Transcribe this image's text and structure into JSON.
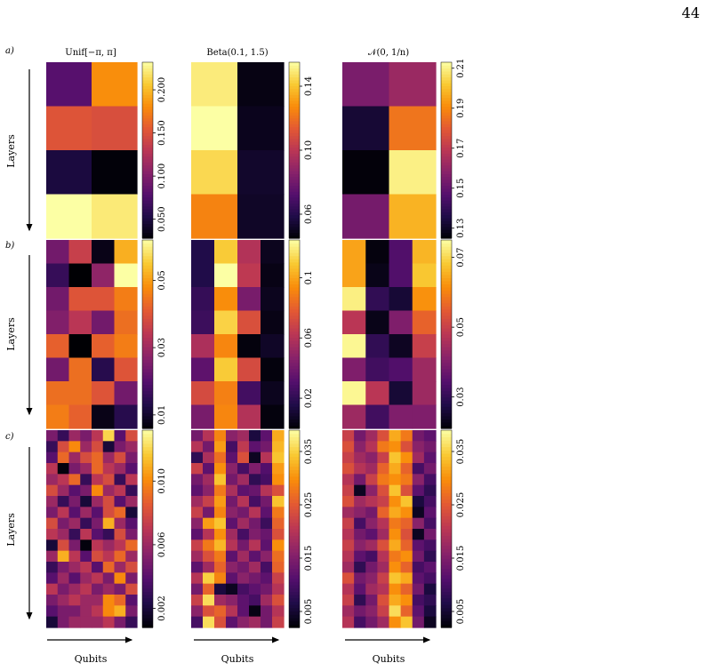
{
  "page_number": "44",
  "row_labels": [
    "a)",
    "b)",
    "c)"
  ],
  "column_titles": [
    "Unif[−π, π]",
    "Beta(0.1, 1.5)",
    "𝒩(0, 1/n)"
  ],
  "ylabel": "Layers",
  "xlabel": "Qubits",
  "colormap": "inferno",
  "chart_data": [
    {
      "type": "heatmap",
      "panel": "a",
      "title": "Unif[−π, π]",
      "xlabel": "",
      "ylabel": "Layers",
      "colorbar": {
        "range": [
          0.028,
          0.232
        ],
        "ticks": [
          "0.050",
          "0.100",
          "0.150",
          "0.200"
        ]
      },
      "values": [
        [
          0.08,
          0.182
        ],
        [
          0.152,
          0.148
        ],
        [
          0.05,
          0.03
        ],
        [
          0.232,
          0.222
        ]
      ]
    },
    {
      "type": "heatmap",
      "panel": "a",
      "title": "Beta(0.1, 1.5)",
      "xlabel": "",
      "ylabel": "",
      "colorbar": {
        "range": [
          0.045,
          0.155
        ],
        "ticks": [
          "0.06",
          "0.10",
          "0.14"
        ]
      },
      "values": [
        [
          0.15,
          0.048
        ],
        [
          0.155,
          0.05
        ],
        [
          0.145,
          0.053
        ],
        [
          0.125,
          0.052
        ]
      ]
    },
    {
      "type": "heatmap",
      "panel": "a",
      "title": "𝒩(0, 1/n)",
      "xlabel": "",
      "ylabel": "",
      "colorbar": {
        "range": [
          0.125,
          0.213
        ],
        "ticks": [
          "0.13",
          "0.15",
          "0.17",
          "0.19",
          "0.21"
        ]
      },
      "values": [
        [
          0.155,
          0.162
        ],
        [
          0.133,
          0.186
        ],
        [
          0.126,
          0.21
        ],
        [
          0.154,
          0.198
        ]
      ]
    },
    {
      "type": "heatmap",
      "panel": "b",
      "xlabel": "",
      "ylabel": "Layers",
      "colorbar": {
        "range": [
          0.006,
          0.062
        ],
        "ticks": [
          "0.01",
          "0.03",
          "0.05"
        ]
      },
      "values": [
        [
          0.024,
          0.036,
          0.008,
          0.052
        ],
        [
          0.016,
          0.006,
          0.028,
          0.062
        ],
        [
          0.024,
          0.04,
          0.04,
          0.046
        ],
        [
          0.026,
          0.034,
          0.024,
          0.044
        ],
        [
          0.042,
          0.006,
          0.042,
          0.046
        ],
        [
          0.024,
          0.044,
          0.014,
          0.04
        ],
        [
          0.044,
          0.044,
          0.04,
          0.024
        ],
        [
          0.046,
          0.042,
          0.008,
          0.014
        ]
      ]
    },
    {
      "type": "heatmap",
      "panel": "b",
      "xlabel": "",
      "ylabel": "",
      "colorbar": {
        "range": [
          0.0,
          0.125
        ],
        "ticks": [
          "0.02",
          "0.06",
          "0.1"
        ]
      },
      "values": [
        [
          0.016,
          0.11,
          0.06,
          0.006
        ],
        [
          0.016,
          0.125,
          0.064,
          0.004
        ],
        [
          0.022,
          0.094,
          0.042,
          0.006
        ],
        [
          0.024,
          0.112,
          0.074,
          0.004
        ],
        [
          0.058,
          0.092,
          0.002,
          0.008
        ],
        [
          0.034,
          0.11,
          0.072,
          0.002
        ],
        [
          0.072,
          0.09,
          0.026,
          0.006
        ],
        [
          0.042,
          0.092,
          0.06,
          0.002
        ]
      ]
    },
    {
      "type": "heatmap",
      "panel": "b",
      "xlabel": "",
      "ylabel": "",
      "colorbar": {
        "range": [
          0.021,
          0.075
        ],
        "ticks": [
          "0.03",
          "0.05",
          "0.07"
        ]
      },
      "values": [
        [
          0.064,
          0.022,
          0.034,
          0.066
        ],
        [
          0.064,
          0.023,
          0.034,
          0.068
        ],
        [
          0.073,
          0.03,
          0.026,
          0.062
        ],
        [
          0.048,
          0.023,
          0.04,
          0.056
        ],
        [
          0.074,
          0.03,
          0.024,
          0.05
        ],
        [
          0.04,
          0.032,
          0.034,
          0.044
        ],
        [
          0.074,
          0.048,
          0.026,
          0.044
        ],
        [
          0.044,
          0.032,
          0.04,
          0.04
        ]
      ]
    },
    {
      "type": "heatmap",
      "panel": "c",
      "xlabel": "Qubits",
      "ylabel": "Layers",
      "colorbar": {
        "range": [
          0.0008,
          0.0132
        ],
        "ticks": [
          "0.002",
          "0.006",
          "0.010"
        ]
      },
      "values": [
        [
          0.005,
          0.003,
          0.006,
          0.005,
          0.007,
          0.012,
          0.004,
          0.008
        ],
        [
          0.003,
          0.008,
          0.01,
          0.006,
          0.008,
          0.002,
          0.005,
          0.006
        ],
        [
          0.004,
          0.009,
          0.006,
          0.008,
          0.009,
          0.006,
          0.008,
          0.005
        ],
        [
          0.007,
          0.001,
          0.005,
          0.006,
          0.009,
          0.007,
          0.006,
          0.004
        ],
        [
          0.006,
          0.007,
          0.009,
          0.003,
          0.007,
          0.008,
          0.003,
          0.007
        ],
        [
          0.008,
          0.006,
          0.004,
          0.005,
          0.01,
          0.006,
          0.007,
          0.003
        ],
        [
          0.006,
          0.003,
          0.005,
          0.002,
          0.006,
          0.008,
          0.004,
          0.006
        ],
        [
          0.005,
          0.007,
          0.004,
          0.006,
          0.004,
          0.008,
          0.009,
          0.002
        ],
        [
          0.008,
          0.005,
          0.006,
          0.003,
          0.005,
          0.011,
          0.006,
          0.004
        ],
        [
          0.007,
          0.006,
          0.003,
          0.007,
          0.004,
          0.003,
          0.008,
          0.005
        ],
        [
          0.002,
          0.008,
          0.005,
          0.001,
          0.007,
          0.006,
          0.007,
          0.009
        ],
        [
          0.006,
          0.011,
          0.007,
          0.004,
          0.008,
          0.007,
          0.009,
          0.006
        ],
        [
          0.003,
          0.005,
          0.006,
          0.007,
          0.004,
          0.009,
          0.006,
          0.008
        ],
        [
          0.004,
          0.006,
          0.004,
          0.006,
          0.007,
          0.005,
          0.01,
          0.005
        ],
        [
          0.007,
          0.005,
          0.006,
          0.007,
          0.005,
          0.006,
          0.005,
          0.008
        ],
        [
          0.005,
          0.006,
          0.007,
          0.006,
          0.006,
          0.01,
          0.009,
          0.004
        ],
        [
          0.004,
          0.005,
          0.005,
          0.006,
          0.007,
          0.01,
          0.011,
          0.005
        ],
        [
          0.002,
          0.005,
          0.006,
          0.006,
          0.006,
          0.007,
          0.005,
          0.003
        ]
      ]
    },
    {
      "type": "heatmap",
      "panel": "c",
      "xlabel": "Qubits",
      "ylabel": "",
      "colorbar": {
        "range": [
          0.002,
          0.039
        ],
        "ticks": [
          "0.005",
          "0.015",
          "0.025",
          "0.035"
        ]
      },
      "values": [
        [
          0.014,
          0.02,
          0.029,
          0.016,
          0.018,
          0.006,
          0.012,
          0.032
        ],
        [
          0.02,
          0.014,
          0.031,
          0.01,
          0.021,
          0.012,
          0.014,
          0.033
        ],
        [
          0.008,
          0.019,
          0.027,
          0.012,
          0.024,
          0.004,
          0.02,
          0.034
        ],
        [
          0.022,
          0.012,
          0.03,
          0.016,
          0.01,
          0.015,
          0.011,
          0.031
        ],
        [
          0.014,
          0.018,
          0.034,
          0.014,
          0.018,
          0.008,
          0.01,
          0.03
        ],
        [
          0.012,
          0.016,
          0.028,
          0.019,
          0.012,
          0.013,
          0.02,
          0.024
        ],
        [
          0.018,
          0.022,
          0.031,
          0.014,
          0.02,
          0.01,
          0.014,
          0.034
        ],
        [
          0.022,
          0.014,
          0.029,
          0.016,
          0.014,
          0.02,
          0.012,
          0.028
        ],
        [
          0.016,
          0.031,
          0.034,
          0.012,
          0.018,
          0.014,
          0.009,
          0.026
        ],
        [
          0.012,
          0.02,
          0.03,
          0.018,
          0.01,
          0.015,
          0.013,
          0.024
        ],
        [
          0.022,
          0.028,
          0.033,
          0.02,
          0.014,
          0.02,
          0.012,
          0.03
        ],
        [
          0.018,
          0.024,
          0.028,
          0.012,
          0.018,
          0.012,
          0.016,
          0.027
        ],
        [
          0.012,
          0.018,
          0.026,
          0.016,
          0.014,
          0.018,
          0.01,
          0.026
        ],
        [
          0.02,
          0.035,
          0.029,
          0.012,
          0.016,
          0.014,
          0.012,
          0.022
        ],
        [
          0.014,
          0.026,
          0.006,
          0.004,
          0.01,
          0.012,
          0.014,
          0.02
        ],
        [
          0.022,
          0.036,
          0.018,
          0.016,
          0.012,
          0.01,
          0.018,
          0.024
        ],
        [
          0.016,
          0.024,
          0.026,
          0.02,
          0.012,
          0.003,
          0.014,
          0.02
        ],
        [
          0.01,
          0.036,
          0.024,
          0.012,
          0.016,
          0.018,
          0.014,
          0.022
        ]
      ]
    },
    {
      "type": "heatmap",
      "panel": "c",
      "xlabel": "Qubits",
      "ylabel": "",
      "colorbar": {
        "range": [
          0.002,
          0.039
        ],
        "ticks": [
          "0.005",
          "0.015",
          "0.025",
          "0.035"
        ]
      },
      "values": [
        [
          0.022,
          0.014,
          0.018,
          0.024,
          0.032,
          0.028,
          0.014,
          0.012
        ],
        [
          0.024,
          0.016,
          0.02,
          0.028,
          0.03,
          0.024,
          0.016,
          0.014
        ],
        [
          0.022,
          0.018,
          0.016,
          0.022,
          0.034,
          0.03,
          0.018,
          0.012
        ],
        [
          0.024,
          0.02,
          0.018,
          0.026,
          0.032,
          0.026,
          0.01,
          0.014
        ],
        [
          0.02,
          0.014,
          0.022,
          0.028,
          0.03,
          0.028,
          0.016,
          0.01
        ],
        [
          0.022,
          0.004,
          0.016,
          0.024,
          0.034,
          0.024,
          0.012,
          0.008
        ],
        [
          0.024,
          0.018,
          0.02,
          0.022,
          0.03,
          0.034,
          0.006,
          0.01
        ],
        [
          0.018,
          0.016,
          0.014,
          0.026,
          0.032,
          0.03,
          0.004,
          0.012
        ],
        [
          0.022,
          0.01,
          0.016,
          0.02,
          0.028,
          0.026,
          0.016,
          0.01
        ],
        [
          0.02,
          0.014,
          0.012,
          0.018,
          0.03,
          0.024,
          0.004,
          0.014
        ],
        [
          0.022,
          0.016,
          0.018,
          0.024,
          0.032,
          0.026,
          0.012,
          0.01
        ],
        [
          0.02,
          0.012,
          0.01,
          0.02,
          0.028,
          0.03,
          0.014,
          0.008
        ],
        [
          0.018,
          0.008,
          0.014,
          0.018,
          0.03,
          0.026,
          0.01,
          0.012
        ],
        [
          0.024,
          0.014,
          0.016,
          0.022,
          0.034,
          0.032,
          0.012,
          0.01
        ],
        [
          0.02,
          0.012,
          0.018,
          0.02,
          0.03,
          0.026,
          0.014,
          0.006
        ],
        [
          0.022,
          0.008,
          0.014,
          0.024,
          0.032,
          0.03,
          0.01,
          0.008
        ],
        [
          0.018,
          0.014,
          0.016,
          0.022,
          0.036,
          0.026,
          0.012,
          0.006
        ],
        [
          0.02,
          0.01,
          0.014,
          0.018,
          0.03,
          0.034,
          0.014,
          0.004
        ]
      ]
    }
  ]
}
